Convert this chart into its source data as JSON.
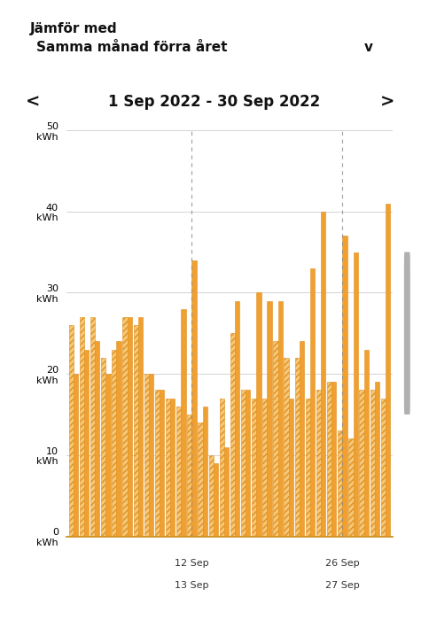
{
  "title": "1 Sep 2022 - 30 Sep 2022",
  "header_label": "Jämför med",
  "dropdown_label": "Samma månad förra året",
  "dropdown_chevron": "v",
  "bg_color": "#ffffff",
  "dropdown_bg": "#f0f0f0",
  "bar_color_current": "#F0A030",
  "bar_color_prev": "#F5C878",
  "bar_edge_color": "#E09020",
  "hatch_color": "#E09020",
  "days": 30,
  "prev_year": [
    26,
    27,
    27,
    22,
    23,
    27,
    26,
    20,
    18,
    17,
    16,
    15,
    14,
    10,
    17,
    25,
    18,
    17,
    17,
    24,
    22,
    22,
    17,
    18,
    19,
    13,
    12,
    18,
    18,
    17
  ],
  "curr_year": [
    20,
    23,
    24,
    20,
    24,
    27,
    27,
    20,
    18,
    17,
    28,
    34,
    16,
    9,
    11,
    29,
    18,
    30,
    29,
    29,
    17,
    24,
    33,
    40,
    19,
    37,
    35,
    23,
    19,
    41
  ],
  "x_tick_positions": [
    11,
    25
  ],
  "x_tick_labels_top": [
    "12 Sep",
    "26 Sep"
  ],
  "x_tick_labels_bot": [
    "13 Sep",
    "27 Sep"
  ],
  "ylim": [
    0,
    50
  ],
  "yticks": [
    0,
    10,
    20,
    30,
    40,
    50
  ],
  "grid_color": "#cccccc",
  "scrollbar_bg": "#e0e0e0",
  "scrollbar_thumb": "#b0b0b0"
}
